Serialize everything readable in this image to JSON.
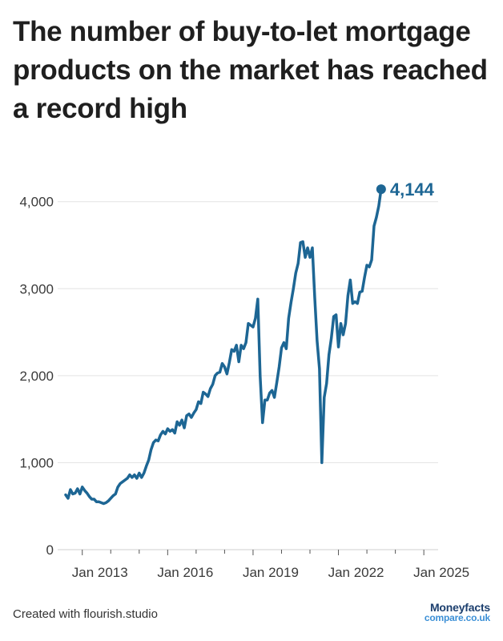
{
  "title": "The number of buy-to-let mortgage products on the market has reached a record high",
  "footer": {
    "credit": "Created with flourish.studio",
    "brand_line1": "Moneyfacts",
    "brand_line2": "compare.co.uk"
  },
  "colors": {
    "line": "#1d6694",
    "grid": "#e3e3e3",
    "axis": "#555555"
  },
  "chart_data": {
    "type": "line",
    "title": "The number of buy-to-let mortgage products on the market has reached a record high",
    "xlabel": "",
    "ylabel": "",
    "xlim": [
      "2012-06",
      "2025-05"
    ],
    "ylim": [
      0,
      4200
    ],
    "y_ticks": [
      {
        "value": 0,
        "label": "0"
      },
      {
        "value": 1000,
        "label": "1,000"
      },
      {
        "value": 2000,
        "label": "2,000"
      },
      {
        "value": 3000,
        "label": "3,000"
      },
      {
        "value": 4000,
        "label": "4,000"
      }
    ],
    "x_ticks": [
      {
        "date": "2013-01",
        "label": "Jan 2013"
      },
      {
        "date": "2016-01",
        "label": "Jan 2016"
      },
      {
        "date": "2019-01",
        "label": "Jan 2019"
      },
      {
        "date": "2022-01",
        "label": "Jan 2022"
      },
      {
        "date": "2025-01",
        "label": "Jan 2025"
      }
    ],
    "grid": true,
    "legend": "none",
    "end_label": "4,144",
    "series": [
      {
        "points": [
          [
            "2012-06",
            630
          ],
          [
            "2012-07",
            590
          ],
          [
            "2012-08",
            690
          ],
          [
            "2012-09",
            640
          ],
          [
            "2012-10",
            650
          ],
          [
            "2012-11",
            700
          ],
          [
            "2012-12",
            640
          ],
          [
            "2013-01",
            720
          ],
          [
            "2013-02",
            680
          ],
          [
            "2013-03",
            650
          ],
          [
            "2013-04",
            610
          ],
          [
            "2013-05",
            580
          ],
          [
            "2013-06",
            580
          ],
          [
            "2013-07",
            550
          ],
          [
            "2013-08",
            550
          ],
          [
            "2013-09",
            540
          ],
          [
            "2013-10",
            530
          ],
          [
            "2013-11",
            540
          ],
          [
            "2013-12",
            560
          ],
          [
            "2014-01",
            590
          ],
          [
            "2014-02",
            620
          ],
          [
            "2014-03",
            640
          ],
          [
            "2014-04",
            720
          ],
          [
            "2014-05",
            760
          ],
          [
            "2014-06",
            780
          ],
          [
            "2014-07",
            800
          ],
          [
            "2014-08",
            820
          ],
          [
            "2014-09",
            860
          ],
          [
            "2014-10",
            830
          ],
          [
            "2014-11",
            860
          ],
          [
            "2014-12",
            820
          ],
          [
            "2015-01",
            880
          ],
          [
            "2015-02",
            830
          ],
          [
            "2015-03",
            880
          ],
          [
            "2015-04",
            960
          ],
          [
            "2015-05",
            1030
          ],
          [
            "2015-06",
            1150
          ],
          [
            "2015-07",
            1230
          ],
          [
            "2015-08",
            1260
          ],
          [
            "2015-09",
            1250
          ],
          [
            "2015-10",
            1320
          ],
          [
            "2015-11",
            1360
          ],
          [
            "2015-12",
            1330
          ],
          [
            "2016-01",
            1390
          ],
          [
            "2016-02",
            1360
          ],
          [
            "2016-03",
            1380
          ],
          [
            "2016-04",
            1340
          ],
          [
            "2016-05",
            1470
          ],
          [
            "2016-06",
            1430
          ],
          [
            "2016-07",
            1490
          ],
          [
            "2016-08",
            1400
          ],
          [
            "2016-09",
            1540
          ],
          [
            "2016-10",
            1560
          ],
          [
            "2016-11",
            1520
          ],
          [
            "2016-12",
            1570
          ],
          [
            "2017-01",
            1610
          ],
          [
            "2017-02",
            1700
          ],
          [
            "2017-03",
            1680
          ],
          [
            "2017-04",
            1810
          ],
          [
            "2017-05",
            1790
          ],
          [
            "2017-06",
            1760
          ],
          [
            "2017-07",
            1850
          ],
          [
            "2017-08",
            1900
          ],
          [
            "2017-09",
            2000
          ],
          [
            "2017-10",
            2030
          ],
          [
            "2017-11",
            2040
          ],
          [
            "2017-12",
            2140
          ],
          [
            "2018-01",
            2100
          ],
          [
            "2018-02",
            2020
          ],
          [
            "2018-03",
            2150
          ],
          [
            "2018-04",
            2300
          ],
          [
            "2018-05",
            2280
          ],
          [
            "2018-06",
            2350
          ],
          [
            "2018-07",
            2160
          ],
          [
            "2018-08",
            2350
          ],
          [
            "2018-09",
            2310
          ],
          [
            "2018-10",
            2380
          ],
          [
            "2018-11",
            2600
          ],
          [
            "2018-12",
            2580
          ],
          [
            "2019-01",
            2560
          ],
          [
            "2019-02",
            2660
          ],
          [
            "2019-03",
            2880
          ],
          [
            "2019-04",
            1990
          ],
          [
            "2019-05",
            1460
          ],
          [
            "2019-06",
            1720
          ],
          [
            "2019-07",
            1720
          ],
          [
            "2019-08",
            1800
          ],
          [
            "2019-09",
            1830
          ],
          [
            "2019-10",
            1750
          ],
          [
            "2019-11",
            1920
          ],
          [
            "2019-12",
            2100
          ],
          [
            "2020-01",
            2320
          ],
          [
            "2020-02",
            2380
          ],
          [
            "2020-03",
            2310
          ],
          [
            "2020-04",
            2660
          ],
          [
            "2020-05",
            2840
          ],
          [
            "2020-06",
            3000
          ],
          [
            "2020-07",
            3180
          ],
          [
            "2020-08",
            3290
          ],
          [
            "2020-09",
            3530
          ],
          [
            "2020-10",
            3540
          ],
          [
            "2020-11",
            3360
          ],
          [
            "2020-12",
            3470
          ],
          [
            "2021-01",
            3360
          ],
          [
            "2021-02",
            3470
          ],
          [
            "2021-03",
            2900
          ],
          [
            "2021-04",
            2400
          ],
          [
            "2021-05",
            2080
          ],
          [
            "2021-06",
            1000
          ],
          [
            "2021-07",
            1750
          ],
          [
            "2021-08",
            1910
          ],
          [
            "2021-09",
            2240
          ],
          [
            "2021-10",
            2430
          ],
          [
            "2021-11",
            2680
          ],
          [
            "2021-12",
            2700
          ],
          [
            "2022-01",
            2330
          ],
          [
            "2022-02",
            2600
          ],
          [
            "2022-03",
            2470
          ],
          [
            "2022-04",
            2600
          ],
          [
            "2022-05",
            2920
          ],
          [
            "2022-06",
            3100
          ],
          [
            "2022-07",
            2830
          ],
          [
            "2022-08",
            2850
          ],
          [
            "2022-09",
            2830
          ],
          [
            "2022-10",
            2960
          ],
          [
            "2022-11",
            2970
          ],
          [
            "2022-12",
            3130
          ],
          [
            "2023-01",
            3270
          ],
          [
            "2023-02",
            3250
          ],
          [
            "2023-03",
            3330
          ],
          [
            "2023-04",
            3720
          ],
          [
            "2023-05",
            3820
          ],
          [
            "2023-06",
            3950
          ],
          [
            "2023-07",
            4144
          ]
        ]
      }
    ]
  }
}
